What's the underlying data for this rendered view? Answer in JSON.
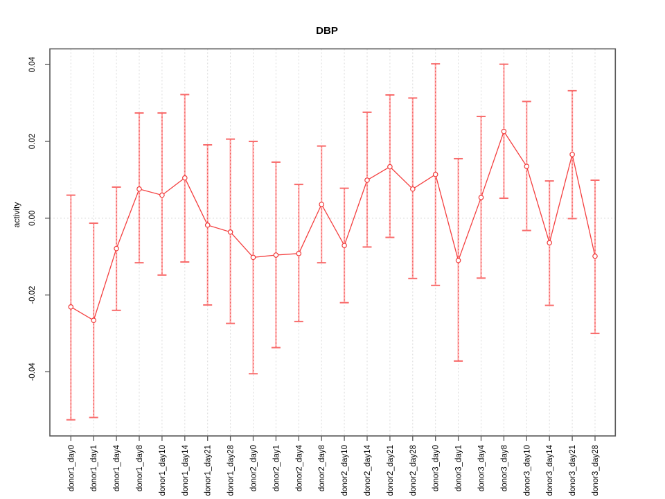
{
  "chart_data": {
    "type": "line",
    "title": "DBP",
    "xlabel": "",
    "ylabel": "activity",
    "grid": "dotted vertical gridline at every category; dotted horizontal line at y=0",
    "legend_position": "none",
    "ylim": [
      -0.0567,
      0.0441
    ],
    "yticks": [
      -0.04,
      -0.02,
      0.0,
      0.02,
      0.04
    ],
    "ytick_labels": [
      "-0.04",
      "-0.02",
      "0.00",
      "0.02",
      "0.04"
    ],
    "categories": [
      "donor1_day0",
      "donor1_day1",
      "donor1_day4",
      "donor1_day8",
      "donor1_day10",
      "donor1_day14",
      "donor1_day21",
      "donor1_day28",
      "donor2_day0",
      "donor2_day1",
      "donor2_day4",
      "donor2_day8",
      "donor2_day10",
      "donor2_day14",
      "donor2_day21",
      "donor2_day28",
      "donor3_day0",
      "donor3_day1",
      "donor3_day4",
      "donor3_day8",
      "donor3_day10",
      "donor3_day14",
      "donor3_day21",
      "donor3_day28"
    ],
    "series": [
      {
        "name": "activity",
        "marker": "open-circle",
        "values": [
          -0.0231,
          -0.0266,
          -0.0079,
          0.0076,
          0.006,
          0.0105,
          -0.0018,
          -0.0036,
          -0.0102,
          -0.0096,
          -0.0092,
          0.0036,
          -0.0071,
          0.0099,
          0.0134,
          0.0076,
          0.0114,
          -0.011,
          0.0054,
          0.0226,
          0.0135,
          -0.0064,
          0.0166,
          -0.0099
        ],
        "err_low": [
          -0.0525,
          -0.0519,
          -0.024,
          -0.0116,
          -0.0148,
          -0.0114,
          -0.0226,
          -0.0274,
          -0.0405,
          -0.0337,
          -0.0269,
          -0.0116,
          -0.022,
          -0.0075,
          -0.005,
          -0.0157,
          -0.0175,
          -0.0372,
          -0.0156,
          0.0052,
          -0.0032,
          -0.0227,
          -0.0001,
          -0.03
        ],
        "err_high": [
          0.006,
          -0.0013,
          0.0081,
          0.0274,
          0.0274,
          0.0322,
          0.0191,
          0.0206,
          0.02,
          0.0146,
          0.0088,
          0.0188,
          0.0078,
          0.0276,
          0.0321,
          0.0313,
          0.0402,
          0.0155,
          0.0265,
          0.0401,
          0.0304,
          0.0097,
          0.0332,
          0.0099
        ]
      }
    ],
    "colors": {
      "line": "#f43f3f",
      "marker_stroke": "#f03a3a",
      "error_stem": "#ffaaaa",
      "error_stem_dash": "#ee4e4e",
      "error_cap": "#f86c6c",
      "gridline": "#d9d9d9",
      "axis": "#575757",
      "text": "#000000",
      "background": "#ffffff"
    }
  }
}
